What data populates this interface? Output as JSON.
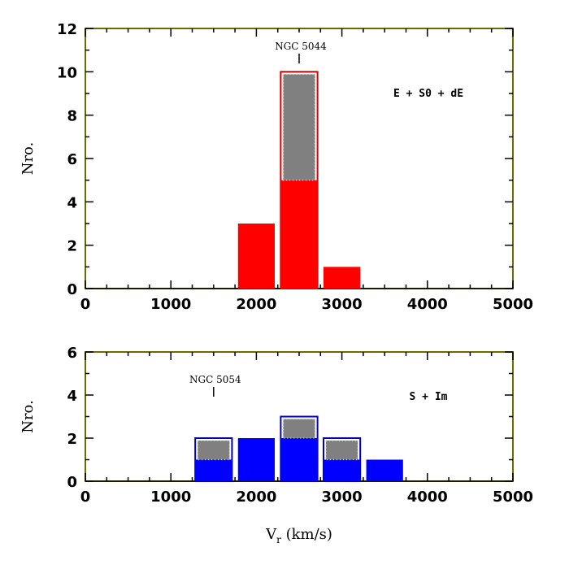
{
  "chart_data": [
    {
      "type": "bar",
      "panel": "top",
      "title": "",
      "xlabel": "",
      "ylabel": "Nro.",
      "xlim": [
        0,
        5000
      ],
      "ylim": [
        0,
        12
      ],
      "xticks": [
        0,
        1000,
        2000,
        3000,
        4000,
        5000
      ],
      "yticks": [
        0,
        2,
        4,
        6,
        8,
        10,
        12
      ],
      "bin_width": 500,
      "bin_centers": [
        2000,
        2500,
        3000
      ],
      "series": [
        {
          "values": [
            3,
            5,
            1
          ],
          "color": "#ff0000"
        },
        {
          "values": [
            0,
            5,
            0
          ],
          "color": "#808080"
        }
      ],
      "group_label": "E + S0 + dE",
      "annotation": {
        "text": "NGC 5044",
        "x": 2500
      }
    },
    {
      "type": "bar",
      "panel": "bottom",
      "title": "",
      "xlabel": "V_r (km/s)",
      "ylabel": "Nro.",
      "xlim": [
        0,
        5000
      ],
      "ylim": [
        0,
        6
      ],
      "xticks": [
        0,
        1000,
        2000,
        3000,
        4000,
        5000
      ],
      "yticks": [
        0,
        2,
        4,
        6
      ],
      "bin_width": 500,
      "bin_centers": [
        1500,
        2000,
        2500,
        3000,
        3500
      ],
      "series": [
        {
          "values": [
            1,
            2,
            2,
            1,
            1
          ],
          "color": "#0000ff"
        },
        {
          "values": [
            1,
            0,
            1,
            1,
            0
          ],
          "color": "#808080"
        }
      ],
      "group_label": "S + Im",
      "annotation": {
        "text": "NGC 5054",
        "x": 1500
      }
    }
  ],
  "colors": {
    "axis": "#000000",
    "frame": "#6b6b00",
    "red": "#ff0000",
    "blue": "#0000ff",
    "gray": "#808080",
    "red_outline": "#cc0000",
    "blue_outline": "#0000aa"
  }
}
